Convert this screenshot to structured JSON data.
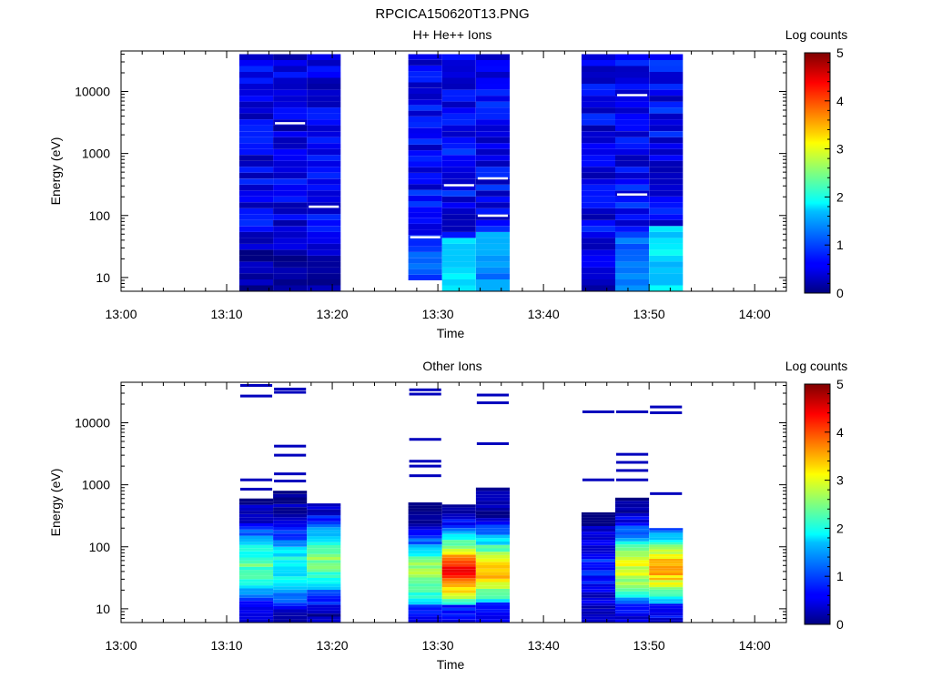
{
  "figure_title": "RPCICA150620T13.PNG",
  "chart_data": [
    {
      "type": "heatmap",
      "title": "H+ He++ Ions",
      "xlabel": "Time",
      "ylabel": "Energy (eV)",
      "x_ticks": [
        "13:00",
        "13:10",
        "13:20",
        "13:30",
        "13:40",
        "13:50",
        "14:00"
      ],
      "x_range": [
        "13:00",
        "14:03"
      ],
      "y_scale": "log",
      "y_ticks": [
        "10",
        "100",
        "1000",
        "10000"
      ],
      "y_range": [
        6,
        45000
      ],
      "colorbar": {
        "label": "Log counts",
        "range": [
          0,
          5
        ],
        "ticks": [
          "0",
          "1",
          "2",
          "3",
          "4",
          "5"
        ]
      },
      "columns": [
        {
          "start": "13:11.2",
          "end": "13:14.4",
          "emin": 6,
          "emax": 40000,
          "base": 0.55,
          "low_boost": {
            "below": 30,
            "level": 0.1
          },
          "gaps": []
        },
        {
          "start": "13:14.4",
          "end": "13:17.6",
          "emin": 6,
          "emax": 40000,
          "base": 0.5,
          "low_boost": {
            "below": 30,
            "level": 0.15
          },
          "gaps": [
            3100
          ]
        },
        {
          "start": "13:17.6",
          "end": "13:20.8",
          "emin": 6,
          "emax": 40000,
          "base": 0.5,
          "low_boost": {
            "below": 30,
            "level": 0.2
          },
          "gaps": [
            140
          ]
        },
        {
          "start": "13:27.2",
          "end": "13:30.4",
          "emin": 9,
          "emax": 40000,
          "base": 0.6,
          "low_boost": {
            "below": 40,
            "level": 1.0
          },
          "gaps": [
            45
          ]
        },
        {
          "start": "13:30.4",
          "end": "13:33.6",
          "emin": 6,
          "emax": 40000,
          "base": 0.6,
          "low_boost": {
            "below": 45,
            "level": 1.8
          },
          "gaps": [
            310
          ]
        },
        {
          "start": "13:33.6",
          "end": "13:36.8",
          "emin": 6,
          "emax": 40000,
          "base": 0.6,
          "low_boost": {
            "below": 50,
            "level": 1.3
          },
          "gaps": [
            100,
            400
          ]
        },
        {
          "start": "13:43.6",
          "end": "13:46.8",
          "emin": 6,
          "emax": 40000,
          "base": 0.55,
          "low_boost": {
            "below": 30,
            "level": 0.4
          },
          "gaps": []
        },
        {
          "start": "13:46.8",
          "end": "13:50.0",
          "emin": 6,
          "emax": 40000,
          "base": 0.6,
          "low_boost": {
            "below": 40,
            "level": 1.1
          },
          "gaps": [
            220,
            8800
          ]
        },
        {
          "start": "13:50.0",
          "end": "13:53.2",
          "emin": 6,
          "emax": 40000,
          "base": 0.6,
          "low_boost": {
            "below": 70,
            "level": 1.7
          },
          "gaps": []
        }
      ]
    },
    {
      "type": "heatmap",
      "title": "Other Ions",
      "xlabel": "Time",
      "ylabel": "Energy (eV)",
      "x_ticks": [
        "13:00",
        "13:10",
        "13:20",
        "13:30",
        "13:40",
        "13:50",
        "14:00"
      ],
      "x_range": [
        "13:00",
        "14:03"
      ],
      "y_scale": "log",
      "y_ticks": [
        "10",
        "100",
        "1000",
        "10000"
      ],
      "y_range": [
        6,
        45000
      ],
      "colorbar": {
        "label": "Log counts",
        "range": [
          0,
          5
        ],
        "ticks": [
          "0",
          "1",
          "2",
          "3",
          "4",
          "5"
        ]
      },
      "columns": [
        {
          "start": "13:11.2",
          "end": "13:14.4",
          "emin": 6,
          "emax": 600,
          "peak_energy": 50,
          "peak_level": 2.3,
          "sparse_lines": [
            850,
            1200,
            27000,
            40000
          ]
        },
        {
          "start": "13:14.4",
          "end": "13:17.6",
          "emin": 6,
          "emax": 800,
          "peak_energy": 45,
          "peak_level": 2.0,
          "sparse_lines": [
            1150,
            1500,
            3000,
            4200,
            31000,
            35000
          ]
        },
        {
          "start": "13:17.6",
          "end": "13:20.8",
          "emin": 6,
          "emax": 500,
          "peak_energy": 60,
          "peak_level": 2.6,
          "sparse_lines": []
        },
        {
          "start": "13:27.2",
          "end": "13:30.4",
          "emin": 6,
          "emax": 520,
          "peak_energy": 35,
          "peak_level": 2.7,
          "sparse_lines": [
            1400,
            2000,
            2400,
            5400,
            29000,
            34000
          ]
        },
        {
          "start": "13:30.4",
          "end": "13:33.6",
          "emin": 6,
          "emax": 480,
          "peak_energy": 40,
          "peak_level": 4.3,
          "sparse_lines": []
        },
        {
          "start": "13:33.6",
          "end": "13:36.8",
          "emin": 6,
          "emax": 900,
          "peak_energy": 40,
          "peak_level": 3.4,
          "sparse_lines": [
            4600,
            21000,
            28000
          ]
        },
        {
          "start": "13:43.6",
          "end": "13:46.8",
          "emin": 6,
          "emax": 360,
          "peak_energy": 45,
          "peak_level": 0.8,
          "sparse_lines": [
            1200,
            15000
          ]
        },
        {
          "start": "13:46.8",
          "end": "13:50.0",
          "emin": 6,
          "emax": 620,
          "peak_energy": 45,
          "peak_level": 3.0,
          "sparse_lines": [
            1200,
            1700,
            2300,
            3100,
            15000
          ]
        },
        {
          "start": "13:50.0",
          "end": "13:53.2",
          "emin": 6,
          "emax": 200,
          "peak_energy": 45,
          "peak_level": 3.5,
          "sparse_lines": [
            720,
            14500,
            18000
          ]
        }
      ]
    }
  ]
}
